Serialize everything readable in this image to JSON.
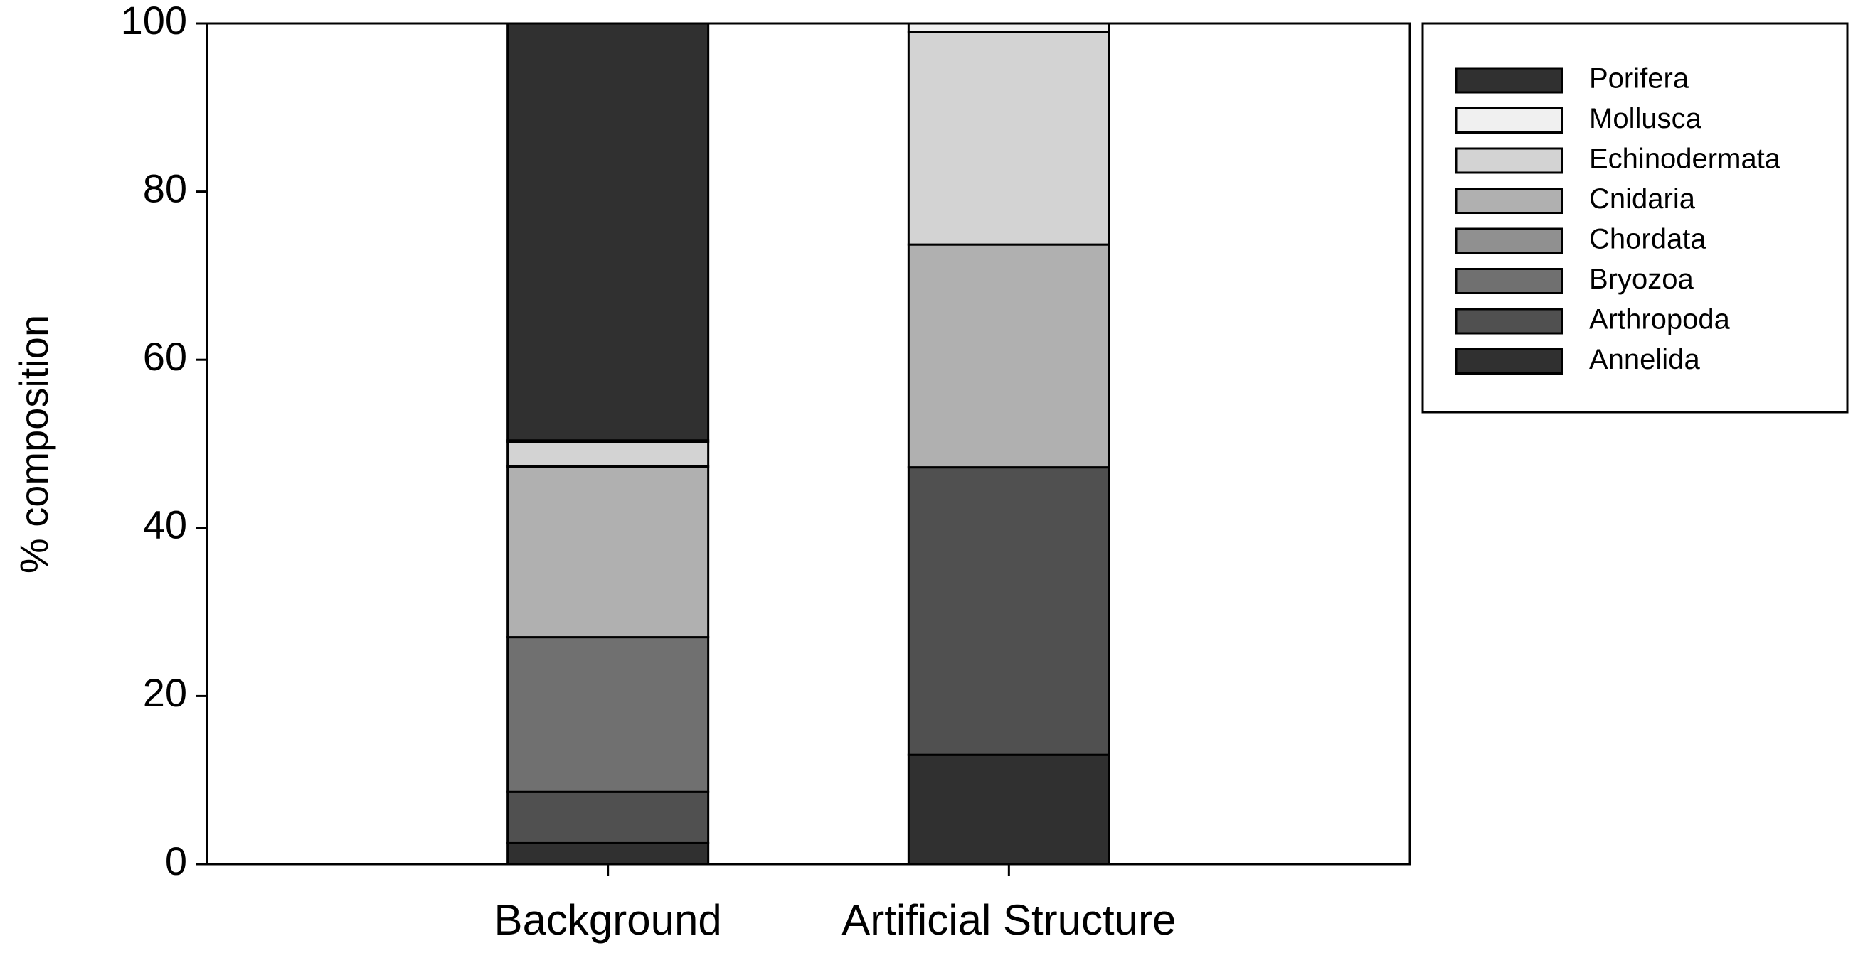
{
  "chart_data": {
    "type": "stacked_bar",
    "y_label": "% composition",
    "categories": [
      "Background",
      "Artificial Structure"
    ],
    "series": [
      {
        "name": "Annelida",
        "color": "#303030",
        "values": [
          2.5,
          13.0
        ]
      },
      {
        "name": "Arthropoda",
        "color": "#505050",
        "values": [
          6.1,
          34.2
        ]
      },
      {
        "name": "Bryozoa",
        "color": "#707070",
        "values": [
          18.4,
          0
        ]
      },
      {
        "name": "Chordata",
        "color": "#909090",
        "values": [
          0,
          0
        ]
      },
      {
        "name": "Cnidaria",
        "color": "#b0b0b0",
        "values": [
          20.3,
          26.5
        ]
      },
      {
        "name": "Echinodermata",
        "color": "#d3d3d3",
        "values": [
          2.9,
          25.3
        ]
      },
      {
        "name": "Mollusca",
        "color": "#f0f0f0",
        "values": [
          0.2,
          1.0
        ]
      },
      {
        "name": "Porifera",
        "color": "#303030",
        "values": [
          49.6,
          0
        ]
      }
    ],
    "ylim": [
      0,
      100
    ],
    "yticks": [
      0,
      20,
      40,
      60,
      80,
      100
    ],
    "grid": false,
    "legend": "right"
  }
}
